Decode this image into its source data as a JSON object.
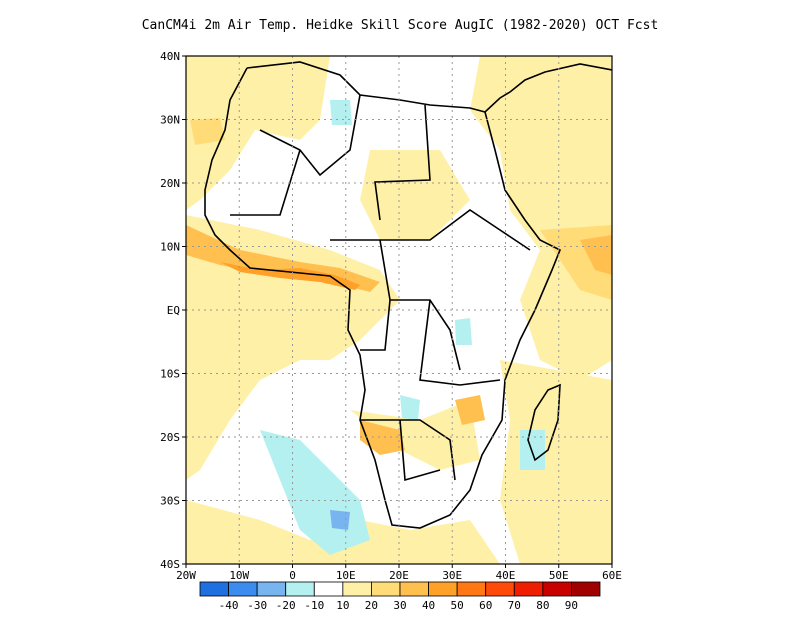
{
  "title": "CanCM4i  2m Air Temp. Heidke Skill Score AugIC (1982-2020) OCT Fcst",
  "map": {
    "lon_range": [
      -20,
      60
    ],
    "lat_range": [
      -40,
      40
    ],
    "lat_ticks": [
      {
        "value": 40,
        "label": "40N"
      },
      {
        "value": 30,
        "label": "30N"
      },
      {
        "value": 20,
        "label": "20N"
      },
      {
        "value": 10,
        "label": "10N"
      },
      {
        "value": 0,
        "label": "EQ"
      },
      {
        "value": -10,
        "label": "10S"
      },
      {
        "value": -20,
        "label": "20S"
      },
      {
        "value": -30,
        "label": "30S"
      },
      {
        "value": -40,
        "label": "40S"
      }
    ],
    "lon_ticks": [
      {
        "value": -20,
        "label": "20W"
      },
      {
        "value": -10,
        "label": "10W"
      },
      {
        "value": 0,
        "label": "0"
      },
      {
        "value": 10,
        "label": "10E"
      },
      {
        "value": 20,
        "label": "20E"
      },
      {
        "value": 30,
        "label": "30E"
      },
      {
        "value": 40,
        "label": "40E"
      },
      {
        "value": 50,
        "label": "50E"
      },
      {
        "value": 60,
        "label": "60E"
      }
    ],
    "grid": true
  },
  "colorbar": {
    "colors": [
      "#1e6fe0",
      "#3c8cf0",
      "#78b4f0",
      "#b4f0f0",
      "#ffffff",
      "#fff0a8",
      "#ffdc78",
      "#ffc050",
      "#ffa028",
      "#ff7814",
      "#ff4a0a",
      "#f01e00",
      "#c80000",
      "#a00000"
    ],
    "labels": [
      "-40",
      "-30",
      "-20",
      "-10",
      "10",
      "20",
      "30",
      "40",
      "50",
      "60",
      "70",
      "80",
      "90"
    ]
  }
}
